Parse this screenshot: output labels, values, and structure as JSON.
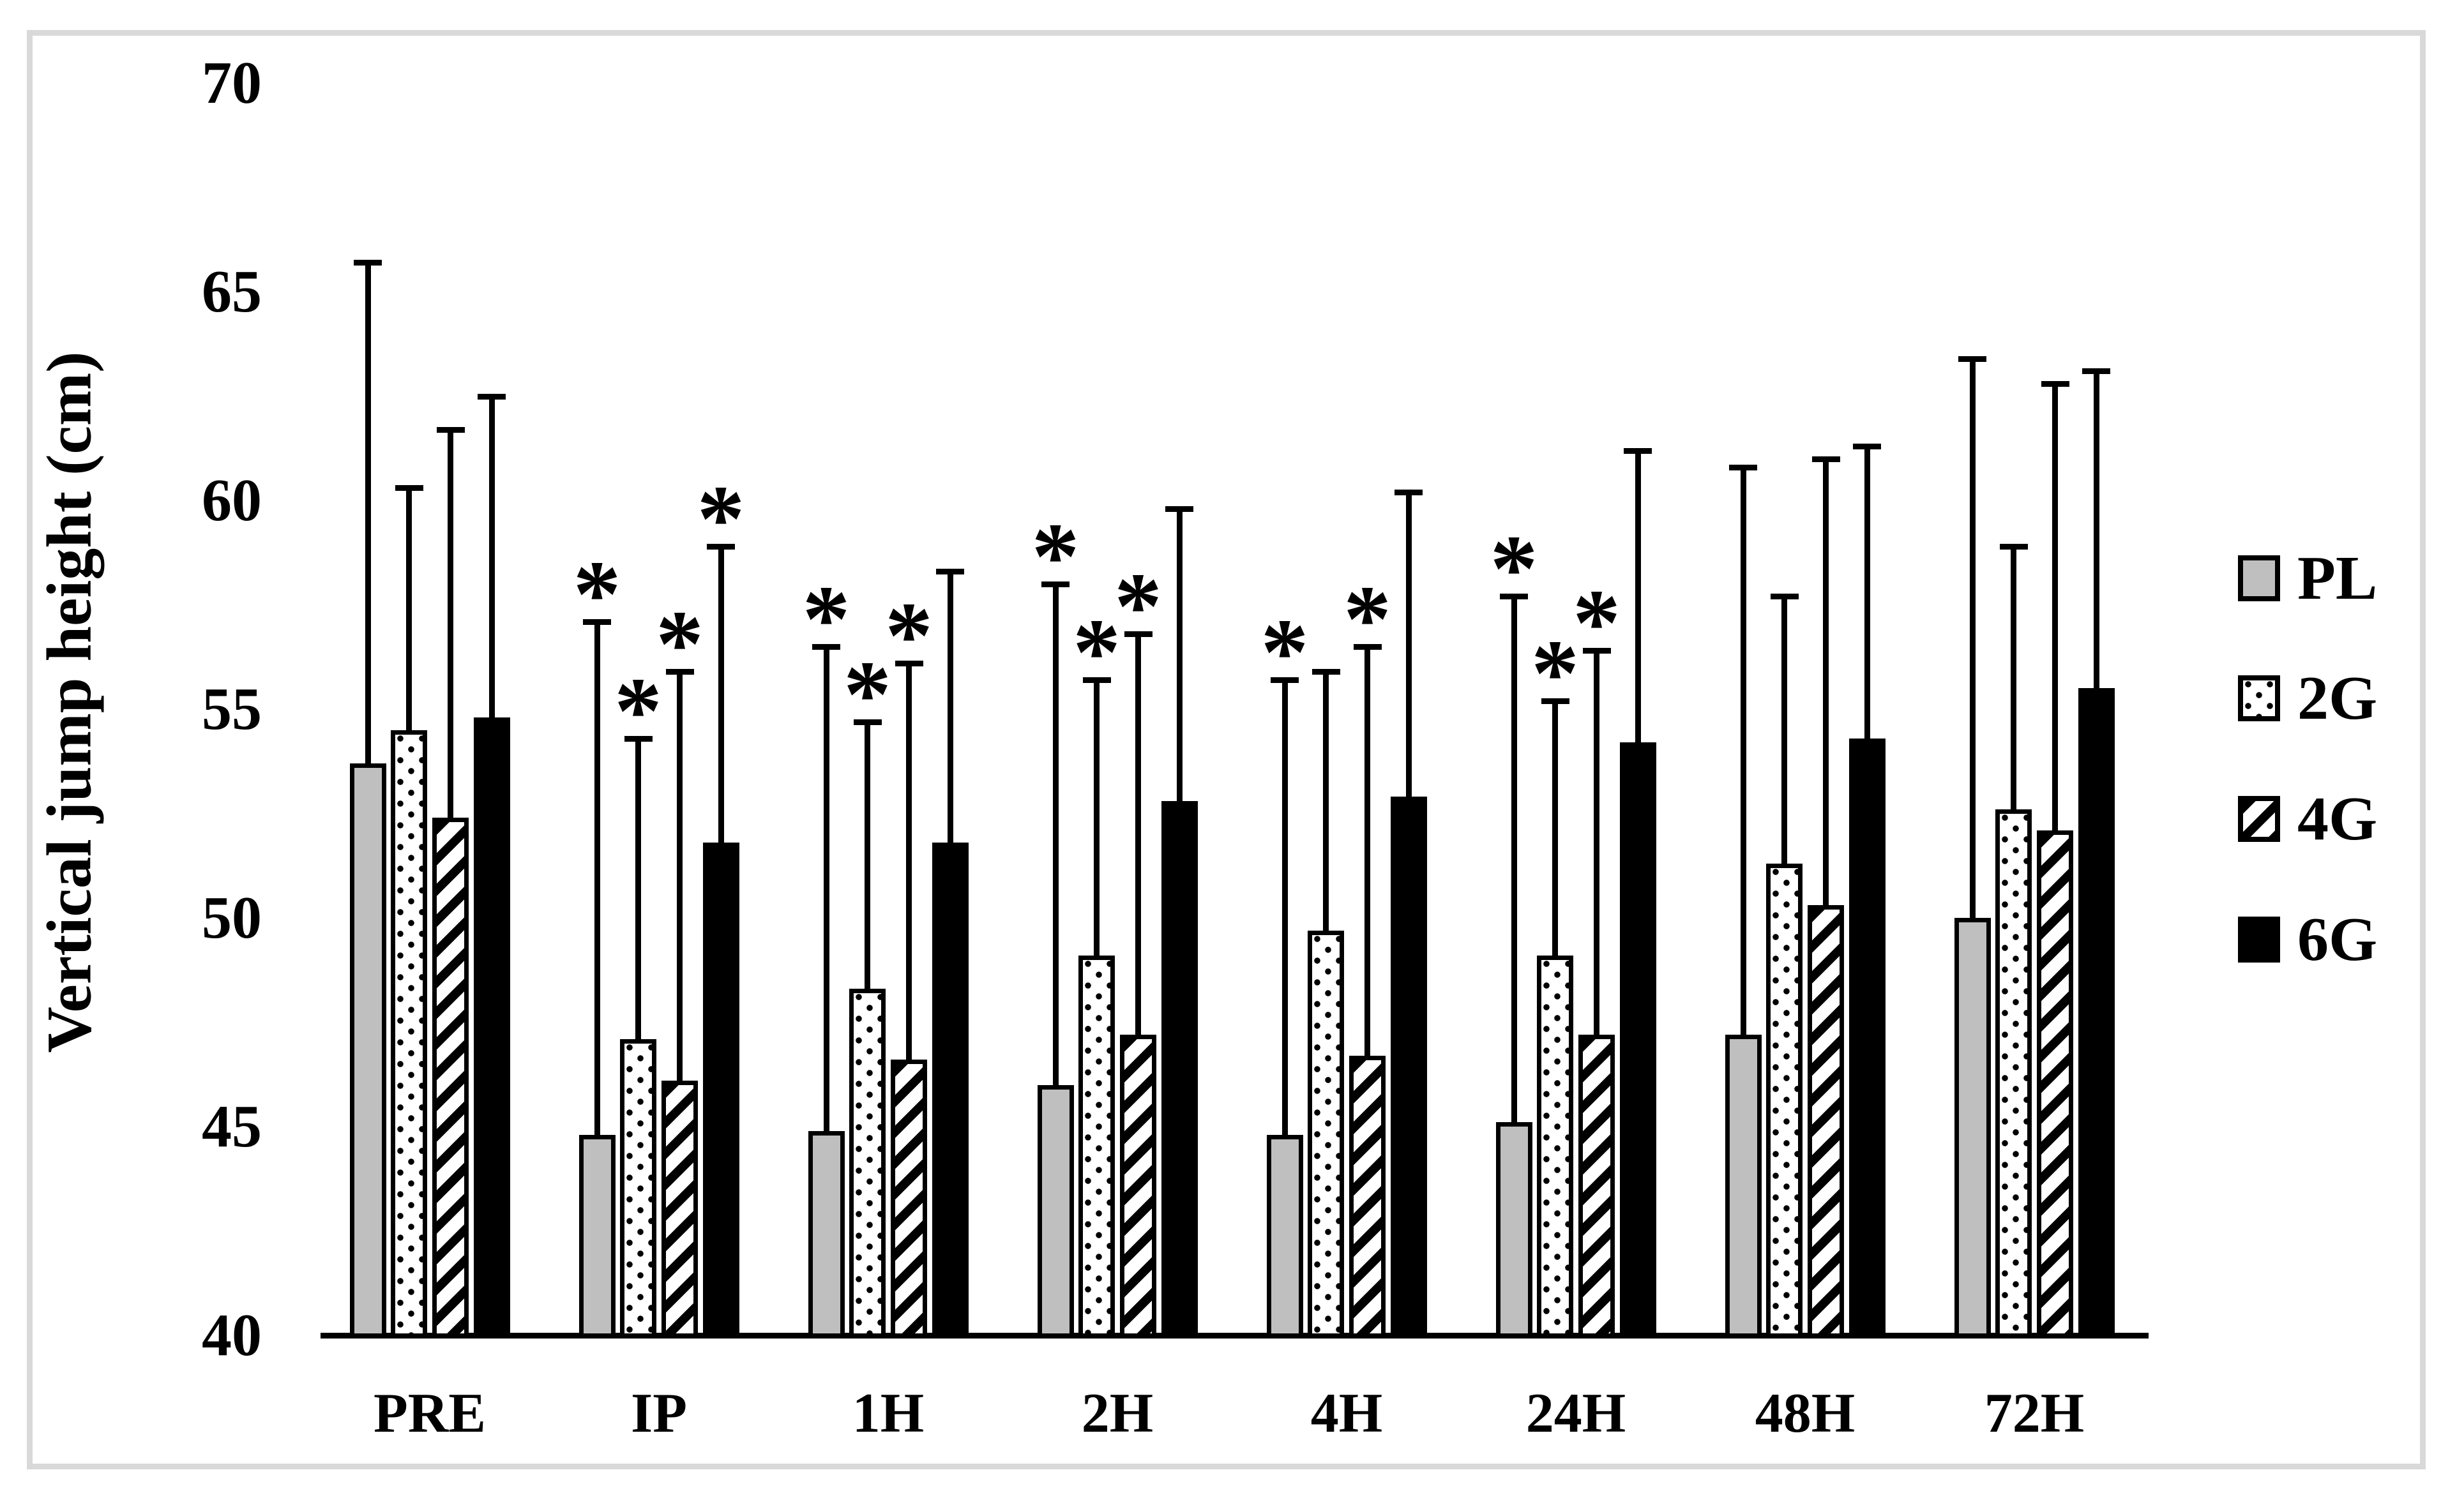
{
  "chart_data": {
    "type": "bar",
    "title": "",
    "xlabel": "",
    "ylabel": "Vertical jump height (cm)",
    "ylim": [
      40,
      70
    ],
    "yticks": [
      "70",
      "65",
      "60",
      "55",
      "50",
      "45",
      "40"
    ],
    "ytick_values": [
      70,
      65,
      60,
      55,
      50,
      45,
      40
    ],
    "grid": false,
    "legend_position": "right",
    "significance_marker": "*",
    "categories": [
      "PRE",
      "IP",
      "1H",
      "2H",
      "4H",
      "24H",
      "48H",
      "72H"
    ],
    "series": [
      {
        "name": "PL",
        "fill": "gray",
        "values": [
          53.7,
          44.8,
          44.9,
          46.0,
          44.8,
          45.1,
          47.2,
          50.0
        ],
        "error_top": [
          65.7,
          57.1,
          56.5,
          58.0,
          55.7,
          57.7,
          60.8,
          63.4
        ],
        "significant": [
          false,
          true,
          true,
          true,
          true,
          true,
          false,
          false
        ]
      },
      {
        "name": "2G",
        "fill": "dots",
        "values": [
          54.5,
          47.1,
          48.3,
          49.1,
          49.7,
          49.1,
          51.3,
          52.6
        ],
        "error_top": [
          60.3,
          54.3,
          54.7,
          55.7,
          55.9,
          55.2,
          57.7,
          58.9
        ],
        "significant": [
          false,
          true,
          true,
          true,
          false,
          true,
          false,
          false
        ]
      },
      {
        "name": "4G",
        "fill": "hatch",
        "values": [
          52.4,
          46.1,
          46.6,
          47.2,
          46.7,
          47.2,
          50.3,
          52.1
        ],
        "error_top": [
          61.7,
          55.9,
          56.1,
          56.8,
          56.5,
          56.4,
          61.0,
          62.8
        ],
        "significant": [
          false,
          true,
          true,
          true,
          true,
          true,
          false,
          false
        ]
      },
      {
        "name": "6G",
        "fill": "black",
        "values": [
          54.8,
          51.8,
          51.8,
          52.8,
          52.9,
          54.2,
          54.3,
          55.5
        ],
        "error_top": [
          62.5,
          58.9,
          58.3,
          59.8,
          60.2,
          61.2,
          61.3,
          63.1
        ],
        "significant": [
          false,
          true,
          false,
          false,
          false,
          false,
          false,
          false
        ]
      }
    ],
    "colors": {
      "pl_fill": "#bfbfbf",
      "bar_border": "#000000",
      "frame": "#d9d9d9",
      "background": "#ffffff"
    }
  }
}
